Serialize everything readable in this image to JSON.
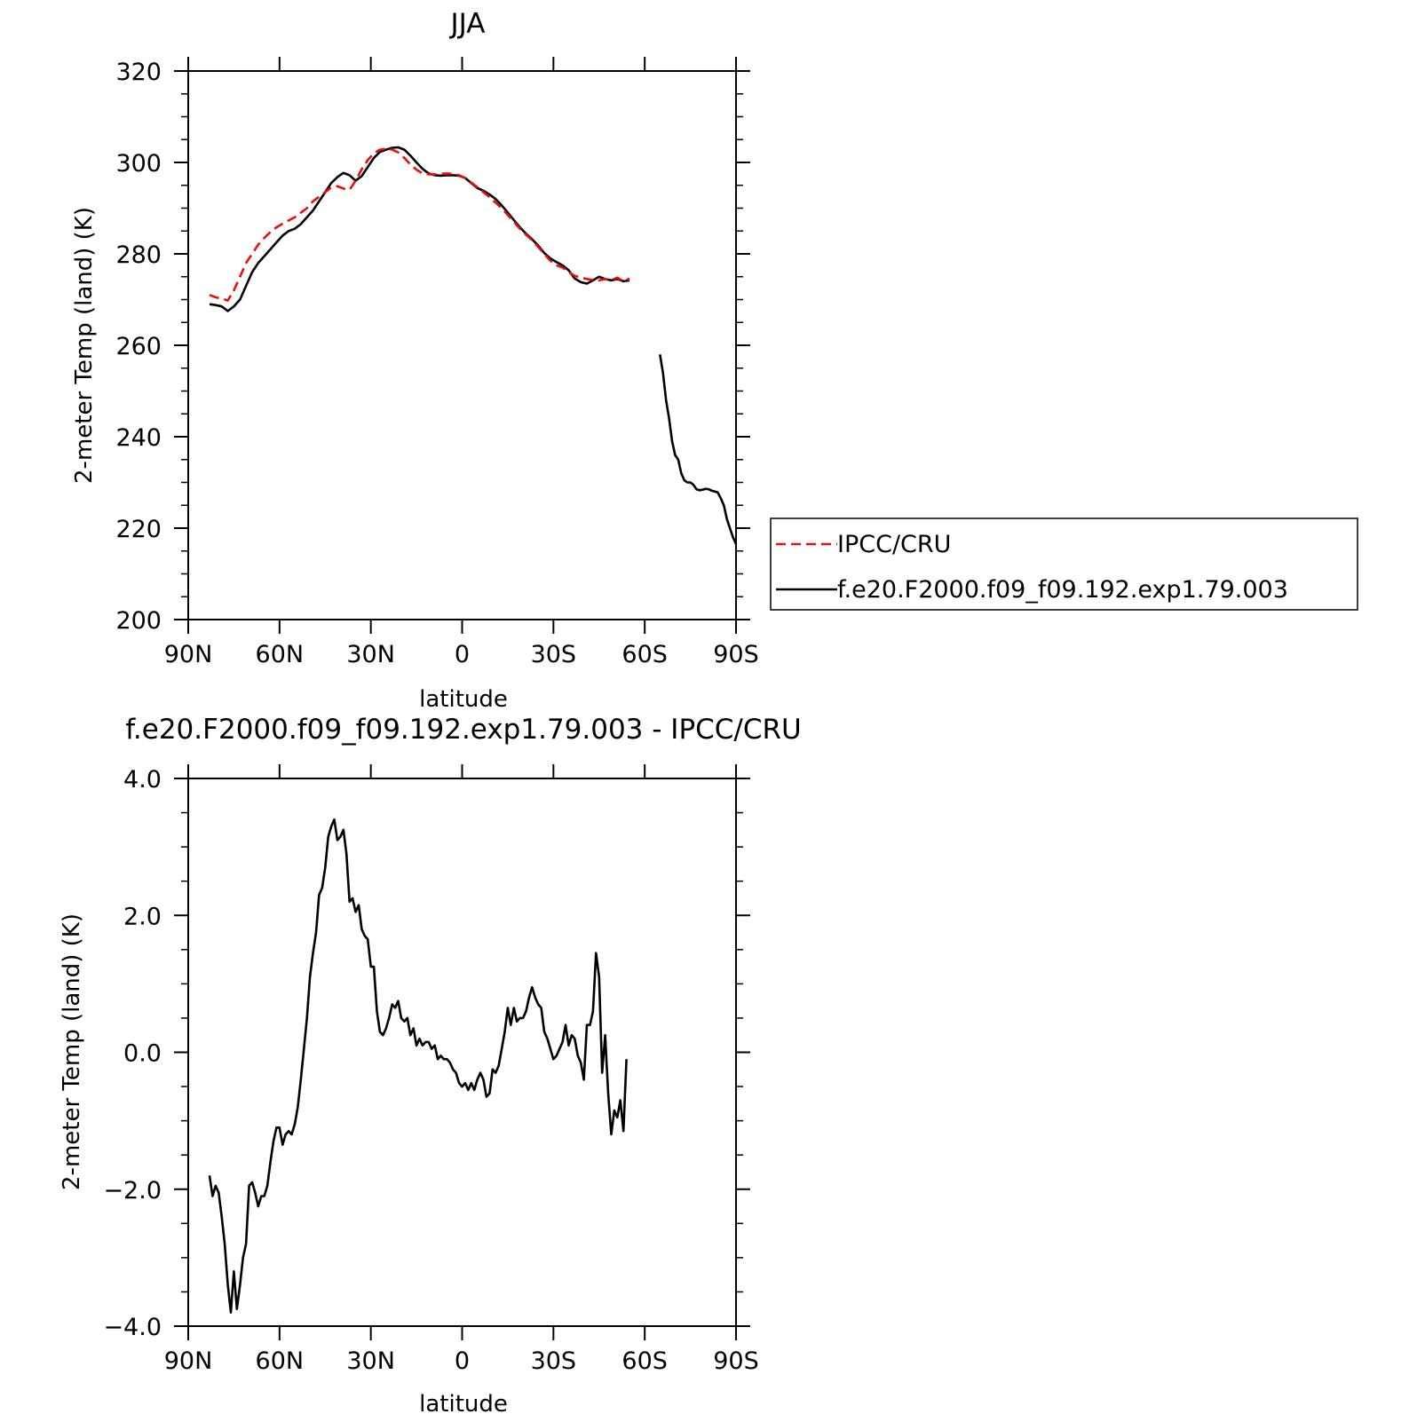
{
  "chart_data": [
    {
      "type": "line",
      "title": "JJA",
      "xlabel": "latitude",
      "ylabel": "2-meter Temp (land) (K)",
      "xlim": [
        90,
        -90
      ],
      "ylim": [
        200,
        320
      ],
      "xticks": [
        90,
        60,
        30,
        0,
        -30,
        -60,
        -90
      ],
      "xtick_labels": [
        "90N",
        "60N",
        "30N",
        "0",
        "30S",
        "60S",
        "90S"
      ],
      "yticks": [
        200,
        220,
        240,
        260,
        280,
        300,
        320
      ],
      "ytick_labels": [
        "200",
        "220",
        "240",
        "260",
        "280",
        "300",
        "320"
      ],
      "legend_position": "right",
      "series": [
        {
          "name": "IPCC/CRU",
          "color": "#e8100e",
          "style": "dashed",
          "x": [
            83,
            81,
            79,
            77,
            75,
            73,
            71,
            69,
            67,
            65,
            63,
            61,
            59,
            57,
            55,
            53,
            51,
            49,
            47,
            45,
            43,
            41,
            39,
            37,
            35,
            33,
            31,
            29,
            27,
            25,
            23,
            21,
            19,
            17,
            15,
            13,
            11,
            9,
            7,
            5,
            3,
            1,
            -1,
            -3,
            -5,
            -7,
            -9,
            -11,
            -13,
            -15,
            -17,
            -19,
            -21,
            -23,
            -25,
            -27,
            -29,
            -31,
            -33,
            -35,
            -37,
            -39,
            -41,
            -43,
            -45,
            -47,
            -49,
            -51,
            -53,
            -55
          ],
          "y": [
            271,
            270.5,
            270.2,
            269.8,
            272,
            275,
            278,
            280,
            282,
            283.5,
            284.8,
            285.8,
            286.6,
            287.3,
            288,
            289,
            290,
            291.5,
            292.5,
            293.5,
            294.5,
            294.8,
            294.3,
            294,
            296,
            298.5,
            300.5,
            302,
            302.8,
            303,
            302.8,
            302.2,
            301,
            299.6,
            298.4,
            297.6,
            297.4,
            297.4,
            297.5,
            297.6,
            297.5,
            297.2,
            296.6,
            295.6,
            294.6,
            293.5,
            292.4,
            291.2,
            290,
            288.5,
            287,
            285.5,
            284.2,
            283,
            281.5,
            280,
            278.5,
            277.5,
            277,
            276,
            275.2,
            274.8,
            274.5,
            274.3,
            274.2,
            274.5,
            274.3,
            274.8,
            274,
            274.6
          ]
        },
        {
          "name": "f.e20.F2000.f09_f09.192.exp1.79.003",
          "color": "#000000",
          "style": "solid",
          "segments": [
            {
              "x": [
                83,
                81,
                79,
                77,
                75,
                73,
                71,
                69,
                67,
                65,
                63,
                61,
                59,
                57,
                55,
                53,
                51,
                49,
                47,
                45,
                43,
                41,
                39,
                37,
                35,
                33,
                31,
                29,
                27,
                25,
                23,
                21,
                19,
                17,
                15,
                13,
                11,
                9,
                7,
                5,
                3,
                1,
                -1,
                -3,
                -5,
                -7,
                -9,
                -11,
                -13,
                -15,
                -17,
                -19,
                -21,
                -23,
                -25,
                -27,
                -29,
                -31,
                -33,
                -35,
                -37,
                -39,
                -41,
                -43,
                -45,
                -47,
                -49,
                -51,
                -53,
                -55
              ],
              "y": [
                269,
                268.8,
                268.5,
                267.5,
                268.5,
                270,
                273,
                276,
                278,
                279.5,
                281,
                282.5,
                284,
                285,
                285.5,
                286.5,
                288,
                289.5,
                291.5,
                293.5,
                295.5,
                296.8,
                297.7,
                297.2,
                296,
                297,
                299,
                301,
                302.3,
                302.8,
                303.2,
                303.3,
                302.8,
                301.5,
                300,
                298.6,
                297.6,
                297.2,
                297.1,
                297.2,
                297.2,
                297.1,
                296.6,
                295.5,
                294.4,
                293.8,
                293,
                292,
                290.6,
                289,
                287.4,
                285.8,
                284.4,
                283.2,
                281.8,
                280.2,
                279,
                278.2,
                277.5,
                276.4,
                274.6,
                273.8,
                273.5,
                274.2,
                275,
                274.5,
                274.2,
                274.5,
                274,
                274.2
              ]
            },
            {
              "x": [
                -65,
                -66,
                -67,
                -68,
                -69,
                -70,
                -71,
                -72,
                -73,
                -74,
                -75,
                -76,
                -77,
                -78,
                -79,
                -80,
                -81,
                -82,
                -83,
                -84,
                -85,
                -86,
                -87,
                -88,
                -89,
                -90
              ],
              "y": [
                258,
                254,
                248,
                244,
                239,
                236,
                235,
                232,
                230.5,
                230,
                230,
                229.5,
                228.5,
                228.3,
                228.4,
                228.6,
                228.5,
                228.2,
                228,
                227.8,
                226.5,
                225,
                222,
                220,
                218,
                216.5
              ]
            }
          ]
        }
      ]
    },
    {
      "type": "line",
      "title": "f.e20.F2000.f09_f09.192.exp1.79.003 - IPCC/CRU",
      "xlabel": "latitude",
      "ylabel": "2-meter Temp (land) (K)",
      "xlim": [
        90,
        -90
      ],
      "ylim": [
        -4.0,
        4.0
      ],
      "xticks": [
        90,
        60,
        30,
        0,
        -30,
        -60,
        -90
      ],
      "xtick_labels": [
        "90N",
        "60N",
        "30N",
        "0",
        "30S",
        "60S",
        "90S"
      ],
      "yticks": [
        -4.0,
        -2.0,
        0.0,
        2.0,
        4.0
      ],
      "ytick_labels": [
        "-4.0",
        "-2.0",
        "0.0",
        "2.0",
        "4.0"
      ],
      "series": [
        {
          "color": "#000000",
          "style": "solid",
          "x": [
            83,
            82,
            81,
            80,
            79,
            78,
            77,
            76,
            75,
            74,
            73,
            72,
            71,
            70,
            69,
            68,
            67,
            66,
            65,
            64,
            63,
            62,
            61,
            60,
            59,
            58,
            57,
            56,
            55,
            54,
            53,
            52,
            51,
            50,
            49,
            48,
            47,
            46,
            45,
            44,
            43,
            42,
            41,
            40,
            39,
            38,
            37,
            36,
            35,
            34,
            33,
            32,
            31,
            30,
            29,
            28,
            27,
            26,
            25,
            24,
            23,
            22,
            21,
            20,
            19,
            18,
            17,
            16,
            15,
            14,
            13,
            12,
            11,
            10,
            9,
            8,
            7,
            6,
            5,
            4,
            3,
            2,
            1,
            0,
            -1,
            -2,
            -3,
            -4,
            -5,
            -6,
            -7,
            -8,
            -9,
            -10,
            -11,
            -12,
            -13,
            -14,
            -15,
            -16,
            -17,
            -18,
            -19,
            -20,
            -21,
            -22,
            -23,
            -24,
            -25,
            -26,
            -27,
            -28,
            -29,
            -30,
            -31,
            -32,
            -33,
            -34,
            -35,
            -36,
            -37,
            -38,
            -39,
            -40,
            -41,
            -42,
            -43,
            -44,
            -45,
            -46,
            -47,
            -48,
            -49,
            -50,
            -51,
            -52,
            -53,
            -54
          ],
          "y": [
            -1.8,
            -2.1,
            -1.95,
            -2.05,
            -2.4,
            -2.8,
            -3.4,
            -3.8,
            -3.2,
            -3.75,
            -3.4,
            -3.0,
            -2.8,
            -1.95,
            -1.9,
            -2.05,
            -2.25,
            -2.1,
            -2.1,
            -1.95,
            -1.6,
            -1.3,
            -1.1,
            -1.1,
            -1.35,
            -1.2,
            -1.15,
            -1.2,
            -1.05,
            -0.8,
            -0.4,
            0.05,
            0.5,
            1.1,
            1.45,
            1.75,
            2.3,
            2.4,
            2.7,
            3.15,
            3.3,
            3.4,
            3.1,
            3.15,
            3.25,
            2.9,
            2.2,
            2.25,
            2.05,
            2.15,
            1.8,
            1.7,
            1.65,
            1.25,
            1.25,
            0.6,
            0.3,
            0.25,
            0.35,
            0.5,
            0.7,
            0.65,
            0.75,
            0.5,
            0.45,
            0.5,
            0.25,
            0.35,
            0.1,
            0.2,
            0.1,
            0.15,
            0.15,
            0.05,
            0.1,
            -0.1,
            -0.05,
            -0.1,
            -0.1,
            -0.15,
            -0.25,
            -0.3,
            -0.45,
            -0.5,
            -0.45,
            -0.55,
            -0.45,
            -0.55,
            -0.4,
            -0.3,
            -0.4,
            -0.65,
            -0.6,
            -0.25,
            -0.3,
            -0.2,
            0.05,
            0.3,
            0.65,
            0.4,
            0.65,
            0.45,
            0.5,
            0.5,
            0.6,
            0.8,
            0.95,
            0.8,
            0.7,
            0.65,
            0.3,
            0.2,
            0.05,
            -0.1,
            -0.05,
            0.05,
            0.15,
            0.4,
            0.1,
            0.25,
            0.2,
            -0.05,
            -0.15,
            -0.4,
            0.4,
            0.4,
            0.6,
            1.45,
            1.1,
            -0.3,
            0.25,
            -0.6,
            -1.2,
            -0.85,
            -0.95,
            -0.7,
            -1.15,
            -0.1
          ]
        }
      ]
    }
  ]
}
